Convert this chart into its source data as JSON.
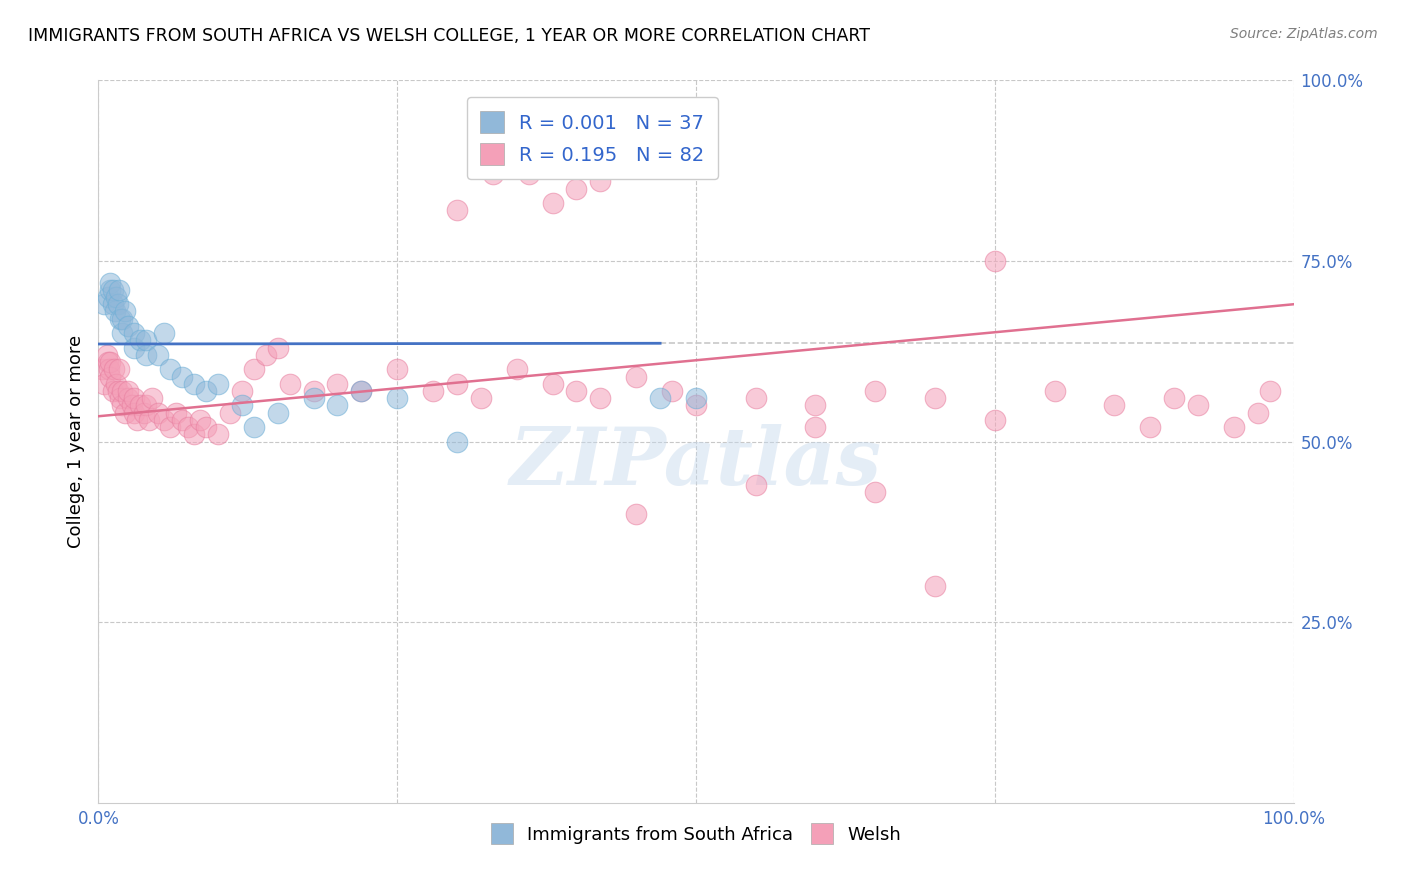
{
  "title": "IMMIGRANTS FROM SOUTH AFRICA VS WELSH COLLEGE, 1 YEAR OR MORE CORRELATION CHART",
  "source_text": "Source: ZipAtlas.com",
  "ylabel": "College, 1 year or more",
  "xlim": [
    0.0,
    1.0
  ],
  "ylim": [
    0.0,
    1.0
  ],
  "xticks": [
    0.0,
    0.25,
    0.5,
    0.75,
    1.0
  ],
  "yticks": [
    0.25,
    0.5,
    0.75,
    1.0
  ],
  "xtick_labels": [
    "0.0%",
    "",
    "",
    "",
    "100.0%"
  ],
  "ytick_labels": [
    "25.0%",
    "50.0%",
    "75.0%",
    "100.0%"
  ],
  "blue_color": "#91b8d9",
  "pink_color": "#f4a0b8",
  "blue_edge_color": "#6baed6",
  "pink_edge_color": "#e87fa0",
  "blue_line_color": "#4472c4",
  "pink_line_color": "#e07090",
  "background_color": "#ffffff",
  "grid_color": "#c8c8c8",
  "watermark": "ZIPatlas",
  "blue_line_x": [
    0.0,
    0.47
  ],
  "blue_line_y": [
    0.635,
    0.636
  ],
  "pink_line_x": [
    0.0,
    1.0
  ],
  "pink_line_y": [
    0.535,
    0.69
  ],
  "dashed_line_x": [
    0.47,
    1.0
  ],
  "dashed_line_y": [
    0.636,
    0.636
  ],
  "blue_scatter_x": [
    0.005,
    0.008,
    0.01,
    0.01,
    0.012,
    0.012,
    0.014,
    0.015,
    0.016,
    0.017,
    0.018,
    0.02,
    0.02,
    0.022,
    0.025,
    0.03,
    0.03,
    0.035,
    0.04,
    0.04,
    0.05,
    0.055,
    0.06,
    0.07,
    0.08,
    0.09,
    0.1,
    0.12,
    0.13,
    0.15,
    0.18,
    0.2,
    0.22,
    0.25,
    0.3,
    0.47,
    0.5
  ],
  "blue_scatter_y": [
    0.69,
    0.7,
    0.71,
    0.72,
    0.69,
    0.71,
    0.68,
    0.7,
    0.69,
    0.71,
    0.67,
    0.65,
    0.67,
    0.68,
    0.66,
    0.63,
    0.65,
    0.64,
    0.62,
    0.64,
    0.62,
    0.65,
    0.6,
    0.59,
    0.58,
    0.57,
    0.58,
    0.55,
    0.52,
    0.54,
    0.56,
    0.55,
    0.57,
    0.56,
    0.5,
    0.56,
    0.56
  ],
  "pink_scatter_x": [
    0.003,
    0.005,
    0.007,
    0.008,
    0.009,
    0.01,
    0.01,
    0.012,
    0.013,
    0.015,
    0.016,
    0.017,
    0.018,
    0.02,
    0.02,
    0.022,
    0.025,
    0.025,
    0.028,
    0.03,
    0.03,
    0.032,
    0.035,
    0.038,
    0.04,
    0.042,
    0.045,
    0.05,
    0.055,
    0.06,
    0.065,
    0.07,
    0.075,
    0.08,
    0.085,
    0.09,
    0.1,
    0.11,
    0.12,
    0.13,
    0.14,
    0.15,
    0.16,
    0.18,
    0.2,
    0.22,
    0.25,
    0.28,
    0.3,
    0.32,
    0.35,
    0.38,
    0.4,
    0.42,
    0.45,
    0.48,
    0.5,
    0.55,
    0.6,
    0.65,
    0.7,
    0.75,
    0.8,
    0.85,
    0.88,
    0.9,
    0.92,
    0.95,
    0.97,
    0.98,
    0.3,
    0.33,
    0.36,
    0.38,
    0.4,
    0.42,
    0.45,
    0.55,
    0.6,
    0.65,
    0.7,
    0.75
  ],
  "pink_scatter_y": [
    0.6,
    0.58,
    0.62,
    0.61,
    0.6,
    0.59,
    0.61,
    0.57,
    0.6,
    0.58,
    0.57,
    0.6,
    0.56,
    0.55,
    0.57,
    0.54,
    0.56,
    0.57,
    0.55,
    0.54,
    0.56,
    0.53,
    0.55,
    0.54,
    0.55,
    0.53,
    0.56,
    0.54,
    0.53,
    0.52,
    0.54,
    0.53,
    0.52,
    0.51,
    0.53,
    0.52,
    0.51,
    0.54,
    0.57,
    0.6,
    0.62,
    0.63,
    0.58,
    0.57,
    0.58,
    0.57,
    0.6,
    0.57,
    0.58,
    0.56,
    0.6,
    0.58,
    0.57,
    0.56,
    0.59,
    0.57,
    0.55,
    0.56,
    0.55,
    0.57,
    0.56,
    0.75,
    0.57,
    0.55,
    0.52,
    0.56,
    0.55,
    0.52,
    0.54,
    0.57,
    0.82,
    0.87,
    0.87,
    0.83,
    0.85,
    0.86,
    0.4,
    0.44,
    0.52,
    0.43,
    0.3,
    0.53
  ]
}
